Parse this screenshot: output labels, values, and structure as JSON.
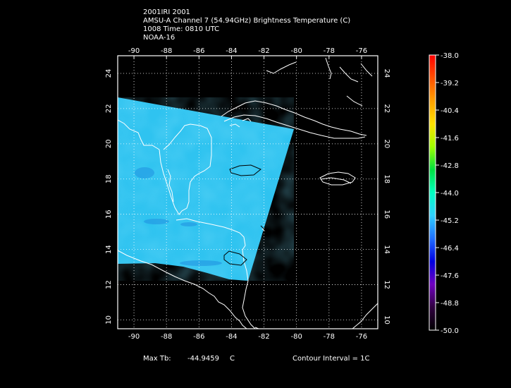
{
  "title": {
    "line1": "2001IRI 2001",
    "line2": "AMSU-A Channel 7 (54.94GHz) Brightness Temperature (C)",
    "line3": "1008 Time: 0810 UTC",
    "line4": "NOAA-16"
  },
  "map": {
    "lon_range": [
      -91,
      -75
    ],
    "lat_range": [
      9.5,
      25
    ],
    "lon_ticks": [
      -90,
      -88,
      -86,
      -84,
      -82,
      -80,
      -78,
      -76
    ],
    "lat_ticks": [
      10,
      12,
      14,
      16,
      18,
      20,
      22,
      24
    ],
    "lon_tick_labels": [
      "-90",
      "-88",
      "-86",
      "-84",
      "-82",
      "-80",
      "-78",
      "-76"
    ],
    "lat_tick_labels": [
      "10",
      "12",
      "14",
      "16",
      "18",
      "20",
      "22",
      "24"
    ],
    "grid": "dotted",
    "swath_color": "#2fc3f0",
    "swath_texture_color": "#57d3f5",
    "contour_color": "#000000",
    "coastline_color": "#ffffff"
  },
  "colorbar": {
    "labels": [
      "-38.0",
      "-39.2",
      "-40.4",
      "-41.6",
      "-42.8",
      "-44.0",
      "-45.2",
      "-46.4",
      "-47.6",
      "-48.8",
      "-50.0"
    ],
    "colors": [
      "#ff0000",
      "#ff5000",
      "#ffa000",
      "#ffe000",
      "#a0ff00",
      "#00e040",
      "#00ffc0",
      "#30d0ff",
      "#2070ff",
      "#0000e0",
      "#7000c0",
      "#300040",
      "#000000"
    ]
  },
  "footer": {
    "max_label": "Max Tb:",
    "max_value": "-44.9459",
    "max_unit": "C",
    "contour_text": "Contour Interval = 1C"
  }
}
